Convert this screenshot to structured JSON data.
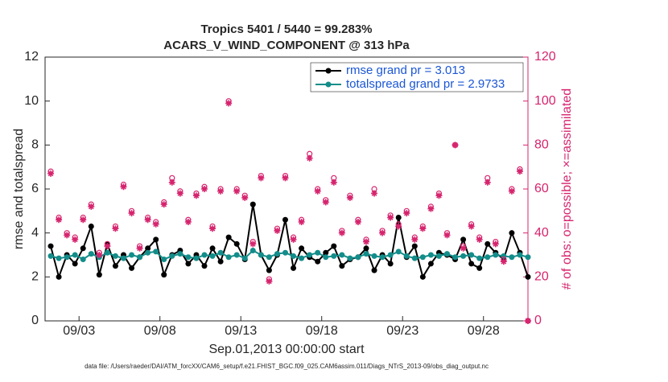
{
  "chart_data": {
    "type": "line",
    "title": "Tropics 5401 / 5440 = 99.283%",
    "subtitle": "ACARS_V_WIND_COMPONENT @ 313 hPa",
    "xlabel": "Sep.01,2013 00:00:00 start",
    "ylabel": "rmse and totalspread",
    "y2label": "# of obs: o=possible; ×=assimilated",
    "footnote": "data file: /Users/raeder/DAI/ATM_forcXX/CAM6_setup/f.e21.FHIST_BGC.f09_025.CAM6assim.011/Diags_NTrS_2013-09/obs_diag_output.nc",
    "x": [
      1.25,
      1.75,
      2.25,
      2.75,
      3.25,
      3.75,
      4.25,
      4.75,
      5.25,
      5.75,
      6.25,
      6.75,
      7.25,
      7.75,
      8.25,
      8.75,
      9.25,
      9.75,
      10.25,
      10.75,
      11.25,
      11.75,
      12.25,
      12.75,
      13.25,
      13.75,
      14.25,
      14.75,
      15.25,
      15.75,
      16.25,
      16.75,
      17.25,
      17.75,
      18.25,
      18.75,
      19.25,
      19.75,
      20.25,
      20.75,
      21.25,
      21.75,
      22.25,
      22.75,
      23.25,
      23.75,
      24.25,
      24.75,
      25.25,
      25.75,
      26.25,
      26.75,
      27.25,
      27.75,
      28.25,
      28.75,
      29.25,
      29.75,
      30.25,
      30.75
    ],
    "xlim": [
      0.9,
      30.75
    ],
    "xticks": [
      {
        "value": 3,
        "label": "09/03"
      },
      {
        "value": 8,
        "label": "09/08"
      },
      {
        "value": 13,
        "label": "09/13"
      },
      {
        "value": 18,
        "label": "09/18"
      },
      {
        "value": 23,
        "label": "09/23"
      },
      {
        "value": 28,
        "label": "09/28"
      }
    ],
    "ylim": [
      0,
      12
    ],
    "yticks": [
      0,
      2,
      4,
      6,
      8,
      10,
      12
    ],
    "y2lim": [
      0,
      120
    ],
    "y2ticks": [
      0,
      20,
      40,
      60,
      80,
      100,
      120
    ],
    "series": [
      {
        "name": "rmse grand pr = 3.013",
        "color": "#000000",
        "values": [
          3.4,
          2.0,
          3.0,
          2.6,
          3.3,
          4.3,
          2.1,
          3.5,
          2.5,
          3.0,
          2.4,
          2.9,
          3.3,
          3.7,
          2.1,
          3.0,
          3.2,
          2.6,
          3.0,
          2.5,
          3.3,
          2.7,
          3.8,
          3.5,
          2.8,
          5.3,
          3.0,
          2.3,
          3.0,
          4.6,
          2.4,
          3.3,
          2.9,
          2.7,
          3.1,
          3.4,
          2.5,
          2.8,
          2.9,
          3.3,
          2.3,
          3.0,
          2.6,
          4.7,
          2.9,
          3.4,
          2.0,
          2.6,
          3.1,
          3.0,
          2.8,
          3.7,
          2.6,
          2.4,
          3.5,
          3.1,
          2.8,
          4.0,
          3.1,
          2.0
        ]
      },
      {
        "name": "totalspread grand pr = 2.9733",
        "color": "#138d8a",
        "values": [
          2.95,
          2.85,
          2.9,
          3.0,
          2.8,
          3.05,
          2.9,
          3.1,
          2.95,
          2.85,
          3.0,
          2.9,
          3.1,
          3.15,
          2.8,
          2.95,
          3.05,
          2.9,
          2.85,
          3.0,
          2.95,
          3.1,
          2.9,
          3.0,
          2.85,
          3.2,
          3.0,
          2.9,
          3.05,
          3.1,
          2.95,
          2.85,
          3.0,
          3.1,
          2.9,
          2.95,
          3.0,
          2.85,
          2.9,
          3.05,
          2.95,
          2.9,
          3.0,
          3.15,
          2.95,
          2.85,
          2.9,
          3.0,
          2.95,
          3.05,
          2.9,
          2.95,
          3.0,
          2.85,
          2.9,
          3.0,
          2.95,
          2.9,
          3.0,
          2.9
        ]
      },
      {
        "name": "possible",
        "color": "#d6246e",
        "axis": "y2",
        "marker": "o",
        "values": [
          68,
          47,
          40,
          38,
          47,
          53,
          31,
          35,
          43,
          62,
          50,
          34,
          47,
          45,
          54,
          65,
          59,
          46,
          58,
          61,
          43,
          60,
          100,
          60,
          57,
          36,
          66,
          19,
          42,
          66,
          38,
          46,
          76,
          60,
          55,
          65,
          41,
          57,
          46,
          37,
          60,
          41,
          48,
          44,
          50,
          38,
          43,
          52,
          58,
          40,
          80,
          34,
          44,
          38,
          65,
          36,
          28,
          60,
          69,
          0
        ]
      },
      {
        "name": "assimilated",
        "color": "#d6246e",
        "axis": "y2",
        "marker": "*",
        "values": [
          67,
          46,
          39,
          37,
          46,
          52,
          30,
          34,
          42,
          61,
          49,
          33,
          46,
          44,
          53,
          63,
          58,
          45,
          57,
          60,
          42,
          59,
          99,
          59,
          56,
          35,
          65,
          18,
          41,
          65,
          37,
          45,
          74,
          59,
          54,
          63,
          40,
          56,
          45,
          36,
          58,
          40,
          47,
          43,
          49,
          37,
          42,
          51,
          57,
          39,
          80,
          33,
          43,
          37,
          63,
          35,
          27,
          59,
          68,
          0
        ]
      }
    ]
  }
}
